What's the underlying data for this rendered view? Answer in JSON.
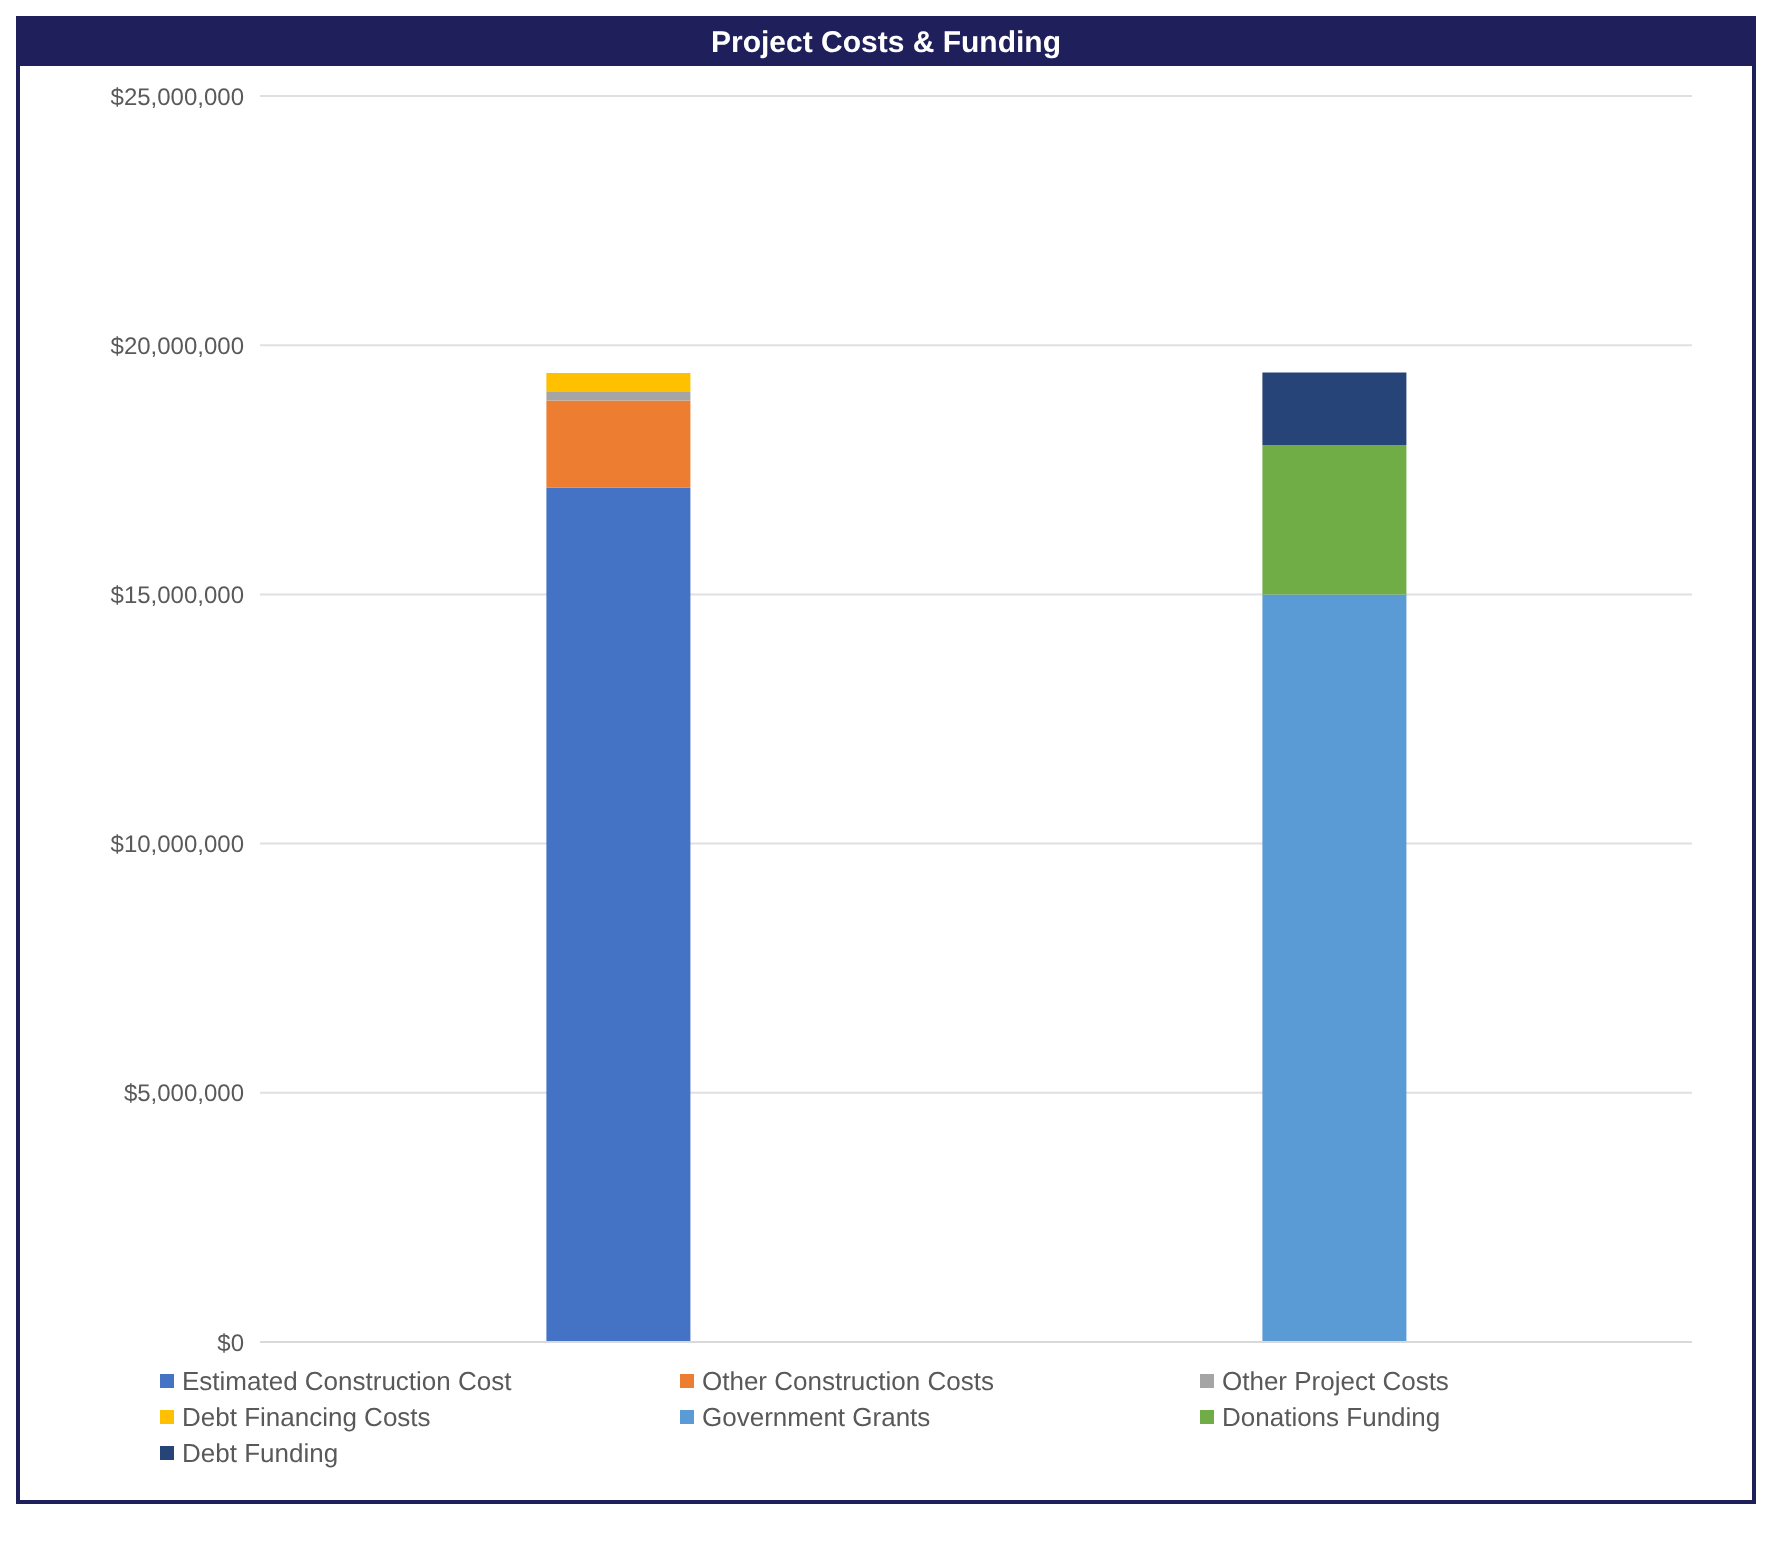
{
  "chart_data": {
    "type": "bar",
    "title": "Project Costs & Funding",
    "categories": [
      null,
      null
    ],
    "stacked": true,
    "series": [
      {
        "name": "Estimated Construction Cost",
        "color": "#4472c4",
        "values": [
          17140000.0,
          null
        ]
      },
      {
        "name": "Other Construction Costs",
        "color": "#ed7d31",
        "values": [
          1750000.0,
          null
        ]
      },
      {
        "name": "Other Project Costs",
        "color": "#a5a5a5",
        "values": [
          170000.0,
          null
        ]
      },
      {
        "name": "Debt Financing Costs",
        "color": "#ffc000",
        "values": [
          380000.0,
          null
        ]
      },
      {
        "name": "Government Grants",
        "color": "#5b9bd5",
        "values": [
          null,
          15000000.0
        ]
      },
      {
        "name": "Donations Funding",
        "color": "#70ad47",
        "values": [
          null,
          3000000.0
        ]
      },
      {
        "name": "Debt Funding",
        "color": "#264478",
        "values": [
          null,
          1450000.0
        ]
      }
    ],
    "ylim": [
      0,
      25000000
    ],
    "yticks": [
      {
        "value": 0,
        "label": "$0"
      },
      {
        "value": 5000000,
        "label": "$5,000,000"
      },
      {
        "value": 10000000,
        "label": "$10,000,000"
      },
      {
        "value": 15000000,
        "label": "$15,000,000"
      },
      {
        "value": 20000000,
        "label": "$20,000,000"
      },
      {
        "value": 25000000,
        "label": "$25,000,000"
      }
    ],
    "grid": "y",
    "legend": "bottom"
  }
}
